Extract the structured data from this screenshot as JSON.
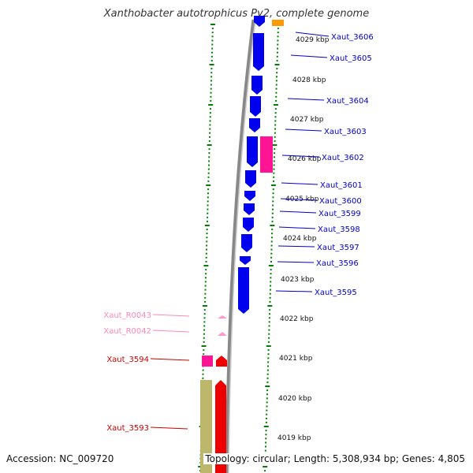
{
  "title": "Xanthobacter autotrophicus Py2, complete genome",
  "footer": {
    "accession": "Accession: NC_009720",
    "summary": "Topology: circular; Length: 5,308,934 bp; Genes: 4,805"
  },
  "kbp_ticks": [
    "4029 kbp",
    "4028 kbp",
    "4027 kbp",
    "4026 kbp",
    "4025 kbp",
    "4024 kbp",
    "4023 kbp",
    "4022 kbp",
    "4021 kbp",
    "4020 kbp",
    "4019 kbp"
  ],
  "right_genes": [
    "Xaut_3606",
    "Xaut_3605",
    "Xaut_3604",
    "Xaut_3603",
    "Xaut_3602",
    "Xaut_3601",
    "Xaut_3600",
    "Xaut_3599",
    "Xaut_3598",
    "Xaut_3597",
    "Xaut_3596",
    "Xaut_3595"
  ],
  "left_genes": {
    "rnas": [
      "Xaut_R0043",
      "Xaut_R0042"
    ],
    "reds": [
      "Xaut_3594",
      "Xaut_3593"
    ]
  },
  "colors": {
    "cds_forward": "#0000ee",
    "cds_reverse": "#ee0000",
    "rrna": "#ff1493",
    "trna": "#ff99cc",
    "other": "#bdb76b",
    "tick_green": "#008000",
    "label_blue": "#0000cc",
    "label_red": "#cc0000",
    "label_pink": "#ff88bb",
    "backbone": "#888888"
  }
}
